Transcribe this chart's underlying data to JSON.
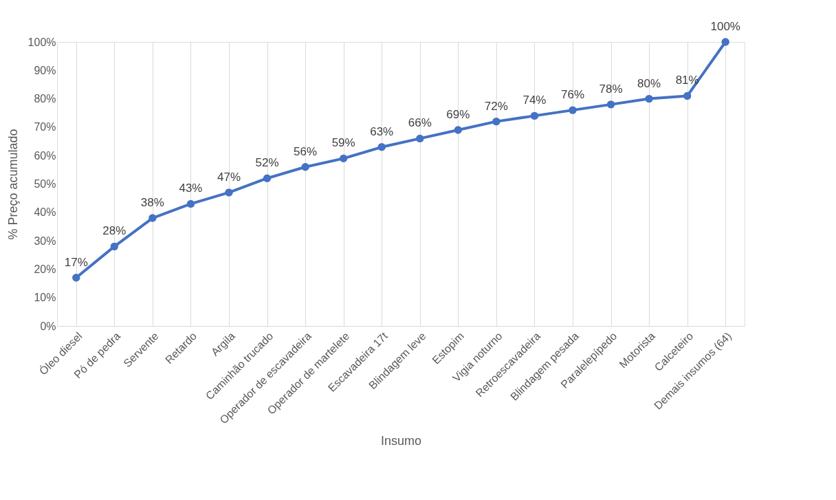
{
  "chart_data": {
    "type": "line",
    "xlabel": "Insumo",
    "ylabel": "% Preço acumulado",
    "categories": [
      "Óleo diesel",
      "Pó de pedra",
      "Servente",
      "Retardo",
      "Argila",
      "Caminhão trucado",
      "Operador de escavadeira",
      "Operador de martelete",
      "Escavadeira 17t",
      "Blindagem leve",
      "Estopim",
      "Vigia noturno",
      "Retroescavadeira",
      "Blindagem pesada",
      "Paralelepípedo",
      "Motorista",
      "Calceteiro",
      "Demais insumos (64)"
    ],
    "series": [
      {
        "color": "#4472c4",
        "values": [
          17,
          28,
          38,
          43,
          47,
          52,
          56,
          59,
          63,
          66,
          69,
          72,
          74,
          76,
          78,
          80,
          81,
          100
        ],
        "value_labels": [
          "17%",
          "28%",
          "38%",
          "43%",
          "47%",
          "52%",
          "56%",
          "59%",
          "63%",
          "66%",
          "69%",
          "72%",
          "74%",
          "76%",
          "78%",
          "80%",
          "81%",
          "100%"
        ]
      }
    ],
    "ylim": [
      0,
      100
    ],
    "yticks": [
      {
        "value": 0,
        "label": "0%"
      },
      {
        "value": 10,
        "label": "10%"
      },
      {
        "value": 20,
        "label": "20%"
      },
      {
        "value": 30,
        "label": "30%"
      },
      {
        "value": 40,
        "label": "40%"
      },
      {
        "value": 50,
        "label": "50%"
      },
      {
        "value": 60,
        "label": "60%"
      },
      {
        "value": 70,
        "label": "70%"
      },
      {
        "value": 80,
        "label": "80%"
      },
      {
        "value": 90,
        "label": "90%"
      },
      {
        "value": 100,
        "label": "100%"
      }
    ],
    "grid": "x",
    "marker": "circle",
    "line_style": "solid"
  }
}
